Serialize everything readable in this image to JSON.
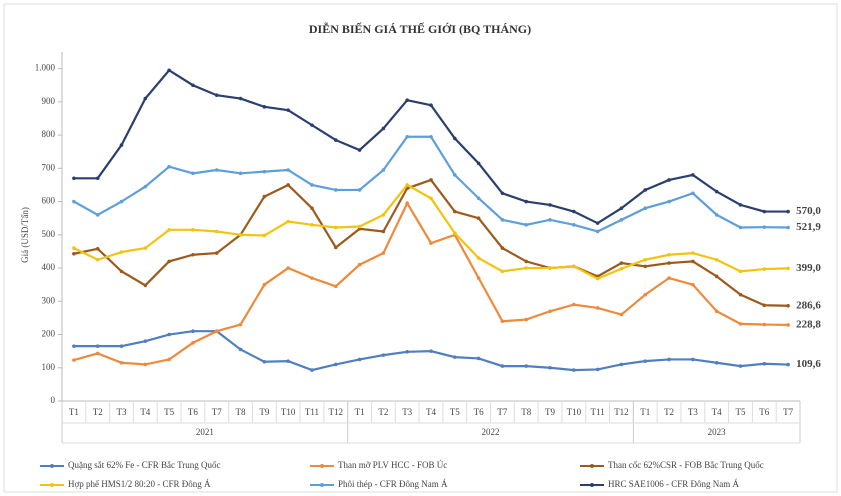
{
  "chart_data": {
    "type": "line",
    "title": "DIỄN BIẾN GIÁ THẾ GIỚI (BQ THÁNG)",
    "y_label": "Giá (USD/Tấn)",
    "categories": [
      "T1",
      "T2",
      "T3",
      "T4",
      "T5",
      "T6",
      "T7",
      "T8",
      "T9",
      "T10",
      "T11",
      "T12",
      "T1",
      "T2",
      "T3",
      "T4",
      "T5",
      "T6",
      "T7",
      "T8",
      "T9",
      "T10",
      "T11",
      "T12",
      "T1",
      "T2",
      "T3",
      "T4",
      "T5",
      "T6",
      "T7"
    ],
    "years": [
      "2021",
      "2022",
      "2023"
    ],
    "ylim": [
      0,
      1050
    ],
    "yticks": [
      0,
      100,
      200,
      300,
      400,
      500,
      600,
      700,
      800,
      900,
      {
        "value": 1000,
        "label": "1.000"
      }
    ],
    "grid": false,
    "legend": "bottom",
    "series": [
      {
        "name": "Quặng sắt 62% Fe - CFR Bắc Trung Quốc",
        "color": "#4f7fc0",
        "label_color": "#e0102f",
        "values": [
          165,
          165,
          165,
          180,
          200,
          210,
          210,
          155,
          118,
          120,
          93,
          110,
          125,
          138,
          148,
          150,
          132,
          128,
          105,
          105,
          100,
          93,
          95,
          110,
          120,
          125,
          125,
          115,
          105,
          112,
          109.6
        ],
        "value_labels": [
          null,
          null,
          null,
          null,
          null,
          null,
          null,
          null,
          null,
          null,
          null,
          null,
          null,
          null,
          null,
          null,
          null,
          null,
          null,
          null,
          null,
          null,
          null,
          null,
          null,
          null,
          null,
          null,
          null,
          null,
          "109,6"
        ]
      },
      {
        "name": "Than mỡ PLV HCC - FOB Úc",
        "color": "#ed8a3c",
        "label_color": "#e0102f",
        "values": [
          123,
          143,
          115,
          110,
          125,
          175,
          210,
          230,
          350,
          400,
          370,
          345,
          410,
          445,
          595,
          475,
          500,
          370,
          240,
          245,
          270,
          290,
          280,
          260,
          320,
          370,
          350,
          270,
          232,
          230,
          228.8
        ],
        "value_labels": [
          null,
          null,
          null,
          null,
          null,
          null,
          null,
          null,
          null,
          null,
          null,
          null,
          null,
          null,
          null,
          null,
          null,
          null,
          null,
          null,
          null,
          null,
          null,
          null,
          null,
          null,
          null,
          null,
          null,
          null,
          "228,8"
        ]
      },
      {
        "name": "Than cốc 62%CSR - FOB Bắc Trung Quốc",
        "color": "#9c5a1c",
        "label_color": "#e0102f",
        "values": [
          443,
          458,
          390,
          348,
          420,
          440,
          445,
          500,
          615,
          650,
          580,
          462,
          518,
          510,
          640,
          665,
          570,
          550,
          460,
          420,
          400,
          405,
          375,
          415,
          405,
          415,
          420,
          375,
          320,
          288,
          286.6
        ],
        "value_labels": [
          null,
          null,
          null,
          null,
          null,
          null,
          null,
          null,
          null,
          null,
          null,
          null,
          null,
          null,
          null,
          null,
          null,
          null,
          null,
          null,
          null,
          null,
          null,
          null,
          null,
          null,
          null,
          null,
          null,
          null,
          "286,6"
        ]
      },
      {
        "name": "Hợp phế HMS1/2 80:20 - CFR Đông Á",
        "color": "#f2c40f",
        "label_color": "#1aa04a",
        "values": [
          460,
          425,
          448,
          460,
          515,
          515,
          510,
          500,
          498,
          540,
          530,
          522,
          525,
          560,
          650,
          610,
          505,
          430,
          390,
          400,
          400,
          405,
          368,
          398,
          425,
          440,
          445,
          425,
          390,
          397,
          399
        ],
        "value_labels": [
          null,
          null,
          null,
          null,
          null,
          null,
          null,
          null,
          null,
          null,
          null,
          null,
          null,
          null,
          null,
          null,
          null,
          null,
          null,
          null,
          null,
          null,
          null,
          null,
          null,
          null,
          null,
          null,
          null,
          null,
          "399,0"
        ]
      },
      {
        "name": "Phôi thép - CFR Đông Nam Á",
        "color": "#5e9fdb",
        "label_color": "#1aa04a",
        "values": [
          600,
          560,
          600,
          645,
          705,
          685,
          695,
          685,
          690,
          695,
          650,
          635,
          635,
          695,
          795,
          795,
          680,
          610,
          545,
          530,
          545,
          530,
          510,
          545,
          580,
          600,
          625,
          560,
          522,
          523,
          521.9
        ],
        "value_labels": [
          null,
          null,
          null,
          null,
          null,
          null,
          null,
          null,
          null,
          null,
          null,
          null,
          null,
          null,
          null,
          null,
          null,
          null,
          null,
          null,
          null,
          null,
          null,
          null,
          null,
          null,
          null,
          null,
          null,
          null,
          "521,9"
        ]
      },
      {
        "name": "HRC SAE1006 - CFR Đông Nam Á",
        "color": "#2b3f6e",
        "label_color": "#1aa04a",
        "values": [
          670,
          670,
          770,
          910,
          995,
          950,
          920,
          910,
          885,
          875,
          830,
          785,
          755,
          820,
          905,
          890,
          790,
          715,
          625,
          600,
          590,
          570,
          535,
          580,
          635,
          665,
          680,
          630,
          590,
          570,
          570
        ],
        "value_labels": [
          null,
          null,
          null,
          null,
          null,
          null,
          null,
          null,
          null,
          null,
          null,
          null,
          null,
          null,
          null,
          null,
          null,
          null,
          null,
          null,
          null,
          null,
          null,
          null,
          null,
          null,
          null,
          null,
          null,
          null,
          "570,0"
        ]
      }
    ]
  }
}
